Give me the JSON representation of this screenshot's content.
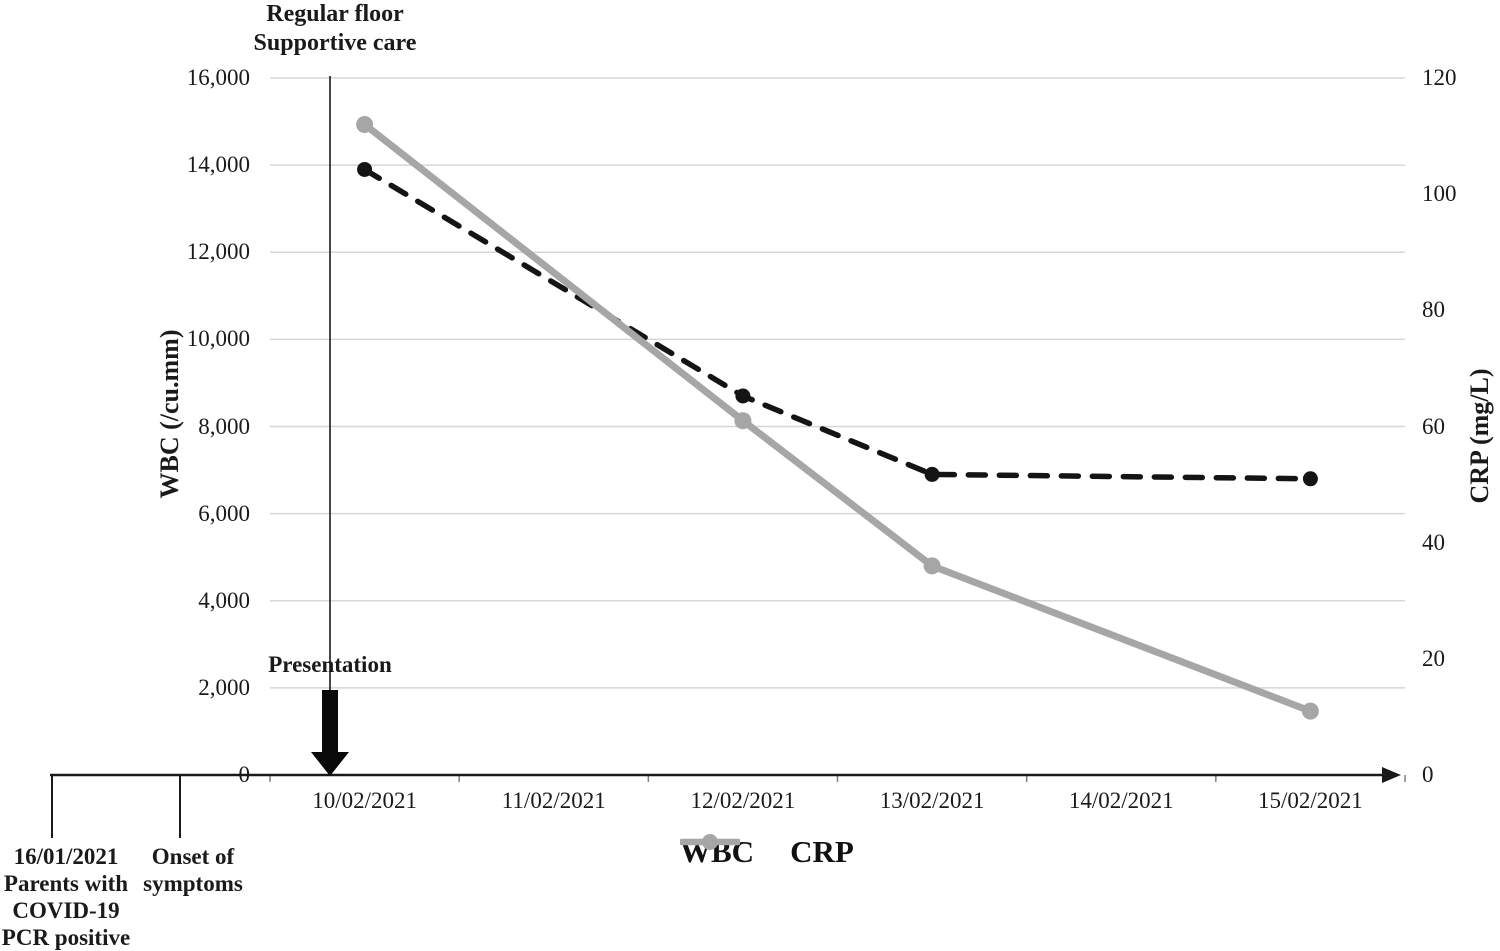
{
  "chart_data": {
    "type": "line",
    "title": "",
    "categories": [
      "10/02/2021",
      "11/02/2021",
      "12/02/2021",
      "13/02/2021",
      "14/02/2021",
      "15/02/2021"
    ],
    "series": [
      {
        "name": "WBC",
        "axis": "left",
        "line_style": "dashed",
        "color": "#141414",
        "marker": "circle",
        "values": [
          13900,
          null,
          8700,
          6900,
          null,
          6800
        ]
      },
      {
        "name": "CRP",
        "axis": "right",
        "line_style": "solid",
        "color": "#a6a6a6",
        "marker": "circle",
        "values": [
          112,
          null,
          61,
          36,
          null,
          11
        ]
      }
    ],
    "left_axis": {
      "title": "WBC (/cu.mm)",
      "min": 0,
      "max": 16000,
      "step": 2000,
      "tick_labels": [
        "0",
        "2,000",
        "4,000",
        "6,000",
        "8,000",
        "10,000",
        "12,000",
        "14,000",
        "16,000"
      ]
    },
    "right_axis": {
      "title": "CRP (mg/L)",
      "min": 0,
      "max": 120,
      "step": 20,
      "tick_labels": [
        "0",
        "20",
        "40",
        "60",
        "80",
        "100",
        "120"
      ]
    },
    "grid": true,
    "legend_position": "bottom",
    "legend": [
      {
        "label": "WBC"
      },
      {
        "label": "CRP"
      }
    ],
    "annotations": {
      "regular_floor_line1": "Regular floor",
      "regular_floor_line2": "Supportive care",
      "presentation": "Presentation",
      "event1_line1": "16/01/2021",
      "event1_line2": "Parents with",
      "event1_line3": "COVID-19",
      "event1_line4": "PCR positive",
      "event2_line1": "Onset of",
      "event2_line2": "symptoms"
    },
    "colors": {
      "wbc_series": "#141414",
      "crp_series": "#a6a6a6",
      "gridline": "#d6d6d6",
      "axis_line": "#1a1a1a"
    }
  }
}
